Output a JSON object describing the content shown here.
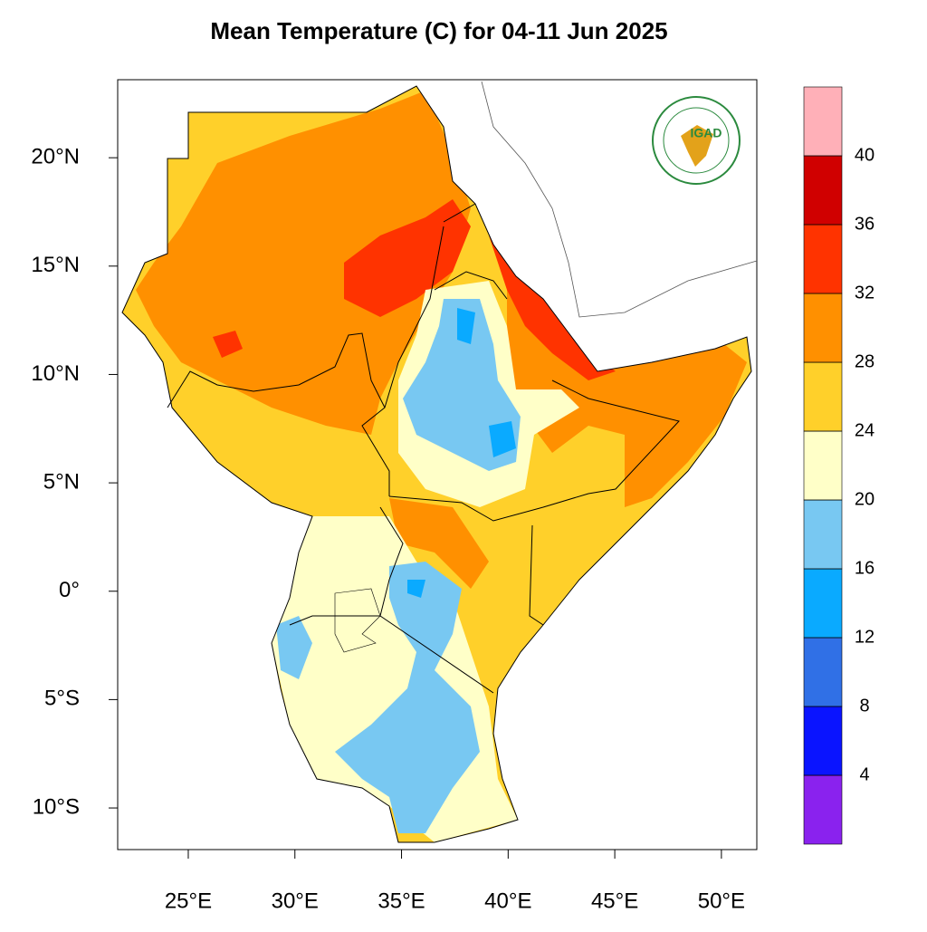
{
  "chart_data": {
    "type": "map",
    "title": "Mean Temperature (C) for 04-11 Jun 2025",
    "xlim": [
      21.69,
      51.66
    ],
    "ylim": [
      -11.92,
      23.6
    ],
    "xticks": [
      {
        "value": 25,
        "label": "25°E"
      },
      {
        "value": 30,
        "label": "30°E"
      },
      {
        "value": 35,
        "label": "35°E"
      },
      {
        "value": 40,
        "label": "40°E"
      },
      {
        "value": 45,
        "label": "45°E"
      },
      {
        "value": 50,
        "label": "50°E"
      }
    ],
    "yticks": [
      {
        "value": 20,
        "label": "20°N"
      },
      {
        "value": 15,
        "label": "15°N"
      },
      {
        "value": 10,
        "label": "10°N"
      },
      {
        "value": 5,
        "label": "5°N"
      },
      {
        "value": 0,
        "label": "0°"
      },
      {
        "value": -5,
        "label": "5°S"
      },
      {
        "value": -10,
        "label": "10°S"
      }
    ],
    "colorbar": {
      "levels": [
        4,
        8,
        12,
        16,
        20,
        24,
        28,
        32,
        36,
        40
      ],
      "colors": [
        "#8a22ee",
        "#0a14ff",
        "#3070e6",
        "#0aaaff",
        "#78c8f2",
        "#ffffc8",
        "#ffd02a",
        "#ff9000",
        "#ff3300",
        "#d00000",
        "#ffb0b8"
      ]
    },
    "logo": {
      "text": "IGAD"
    }
  }
}
